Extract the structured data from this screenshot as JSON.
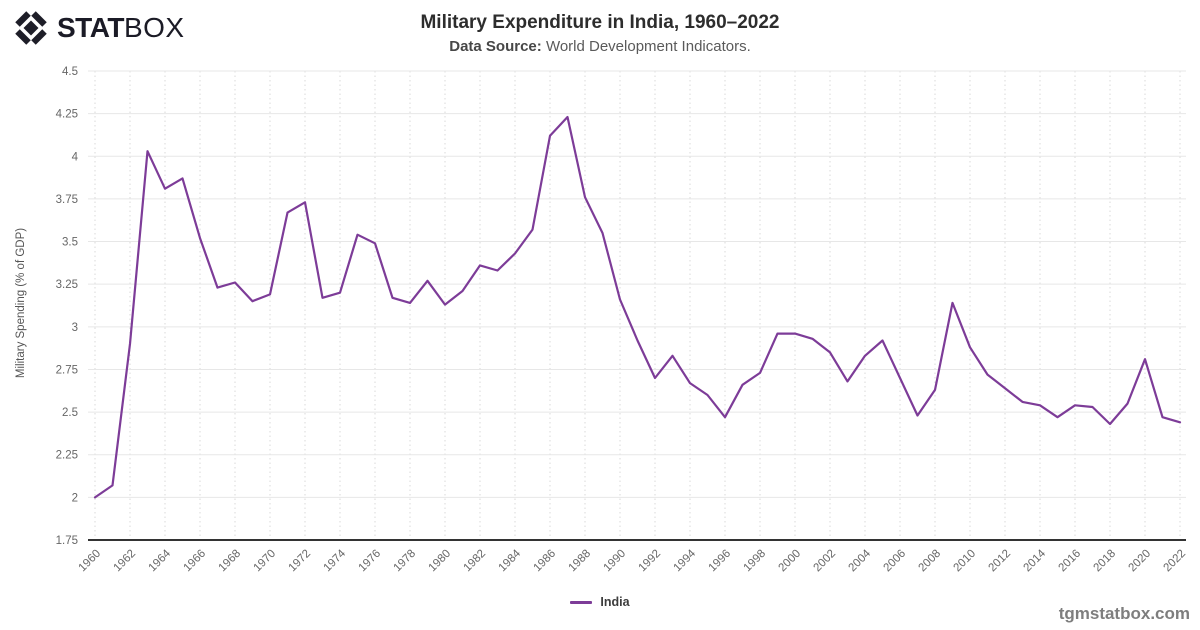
{
  "logo": {
    "stat": "STAT",
    "box": "BOX"
  },
  "header": {
    "title": "Military Expenditure in India, 1960–2022",
    "subtitle_label": "Data Source:",
    "subtitle_text": "World Development Indicators."
  },
  "footer": {
    "watermark": "tgmstatbox.com"
  },
  "colors": {
    "line": "#7D3C98",
    "grid": "#e7e7e7",
    "grid_dotted": "#d9d9d9",
    "axis": "#333333",
    "tick_text": "#666666",
    "logo_ink": "#1e1e28"
  },
  "chart_data": {
    "type": "line",
    "title": "Military Expenditure in India, 1960–2022",
    "xlabel": "",
    "ylabel": "Military Spending (% of GDP)",
    "ylim": [
      1.75,
      4.5
    ],
    "yticks": [
      1.75,
      2,
      2.25,
      2.5,
      2.75,
      3,
      3.25,
      3.5,
      3.75,
      4,
      4.25,
      4.5
    ],
    "xtick_step": 2,
    "grid": true,
    "legend_position": "bottom",
    "x": [
      1960,
      1961,
      1962,
      1963,
      1964,
      1965,
      1966,
      1967,
      1968,
      1969,
      1970,
      1971,
      1972,
      1973,
      1974,
      1975,
      1976,
      1977,
      1978,
      1979,
      1980,
      1981,
      1982,
      1983,
      1984,
      1985,
      1986,
      1987,
      1988,
      1989,
      1990,
      1991,
      1992,
      1993,
      1994,
      1995,
      1996,
      1997,
      1998,
      1999,
      2000,
      2001,
      2002,
      2003,
      2004,
      2005,
      2006,
      2007,
      2008,
      2009,
      2010,
      2011,
      2012,
      2013,
      2014,
      2015,
      2016,
      2017,
      2018,
      2019,
      2020,
      2021,
      2022
    ],
    "series": [
      {
        "name": "India",
        "color": "#7D3C98",
        "values": [
          2.0,
          2.07,
          2.9,
          4.03,
          3.81,
          3.87,
          3.52,
          3.23,
          3.26,
          3.15,
          3.19,
          3.67,
          3.73,
          3.17,
          3.2,
          3.54,
          3.49,
          3.17,
          3.14,
          3.27,
          3.13,
          3.21,
          3.36,
          3.33,
          3.43,
          3.57,
          4.12,
          4.23,
          3.76,
          3.55,
          3.16,
          2.92,
          2.7,
          2.83,
          2.67,
          2.6,
          2.47,
          2.66,
          2.73,
          2.96,
          2.96,
          2.93,
          2.85,
          2.68,
          2.83,
          2.92,
          2.7,
          2.48,
          2.63,
          3.14,
          2.88,
          2.72,
          2.64,
          2.56,
          2.54,
          2.47,
          2.54,
          2.53,
          2.43,
          2.55,
          2.81,
          2.47,
          2.44
        ]
      }
    ]
  }
}
